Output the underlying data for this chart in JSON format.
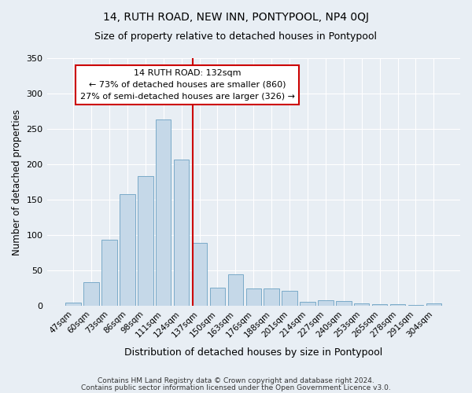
{
  "title1": "14, RUTH ROAD, NEW INN, PONTYPOOL, NP4 0QJ",
  "title2": "Size of property relative to detached houses in Pontypool",
  "xlabel": "Distribution of detached houses by size in Pontypool",
  "ylabel": "Number of detached properties",
  "footer1": "Contains HM Land Registry data © Crown copyright and database right 2024.",
  "footer2": "Contains public sector information licensed under the Open Government Licence v3.0.",
  "categories": [
    "47sqm",
    "60sqm",
    "73sqm",
    "86sqm",
    "98sqm",
    "111sqm",
    "124sqm",
    "137sqm",
    "150sqm",
    "163sqm",
    "176sqm",
    "188sqm",
    "201sqm",
    "214sqm",
    "227sqm",
    "240sqm",
    "253sqm",
    "265sqm",
    "278sqm",
    "291sqm",
    "304sqm"
  ],
  "values": [
    5,
    33,
    94,
    158,
    183,
    263,
    207,
    89,
    26,
    45,
    25,
    25,
    21,
    6,
    8,
    7,
    4,
    2,
    2,
    1,
    3
  ],
  "bar_color": "#c5d8e8",
  "bar_edge_color": "#7aaac8",
  "bg_color": "#e8eef4",
  "grid_color": "#ffffff",
  "property_line_color": "#cc0000",
  "annotation_line1": "14 RUTH ROAD: 132sqm",
  "annotation_line2": "← 73% of detached houses are smaller (860)",
  "annotation_line3": "27% of semi-detached houses are larger (326) →",
  "annotation_box_color": "#ffffff",
  "annotation_box_edge": "#cc0000",
  "ylim": [
    0,
    350
  ],
  "yticks": [
    0,
    50,
    100,
    150,
    200,
    250,
    300,
    350
  ]
}
